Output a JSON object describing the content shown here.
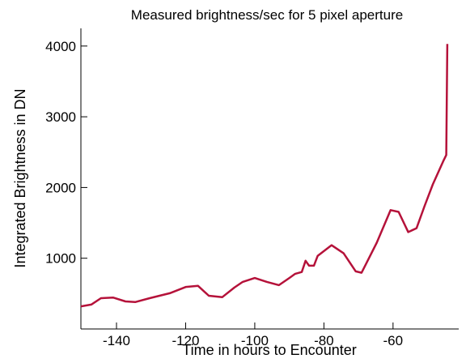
{
  "chart_data": {
    "type": "line",
    "title": "Measured brightness/sec for 5 pixel aperture",
    "x_label": "Time in hours to Encounter",
    "y_label": "Integrated Brightness in DN",
    "x": [
      -150.3,
      -147.3,
      -144.5,
      -141,
      -137.4,
      -134.6,
      -130.4,
      -124.6,
      -119.9,
      -116.4,
      -113.3,
      -109.4,
      -105.9,
      -103.5,
      -100,
      -96.5,
      -93,
      -90,
      -88.3,
      -86.4,
      -85.3,
      -84.3,
      -82.9,
      -81.8,
      -77.8,
      -74.3,
      -70.8,
      -69.1,
      -67.7,
      -64.7,
      -60.7,
      -58.4,
      -55.6,
      -53.2,
      -50.9,
      -48.5,
      -45.5,
      -44.6,
      -44.3
    ],
    "series": [
      {
        "name": "brightness",
        "color": "#b5123a",
        "values": [
          320,
          345,
          435,
          445,
          390,
          380,
          435,
          505,
          595,
          610,
          470,
          450,
          585,
          665,
          720,
          665,
          620,
          720,
          780,
          805,
          965,
          895,
          895,
          1035,
          1185,
          1070,
          815,
          795,
          930,
          1220,
          1680,
          1655,
          1370,
          1425,
          1735,
          2045,
          2370,
          2460,
          4030
        ]
      }
    ],
    "xlim": [
      -150.3,
      -41
    ],
    "xticks": [
      -140,
      -120,
      -100,
      -80,
      -60
    ],
    "ylim": [
      0,
      4250
    ],
    "yticks": [
      1000,
      2000,
      3000,
      4000
    ]
  }
}
